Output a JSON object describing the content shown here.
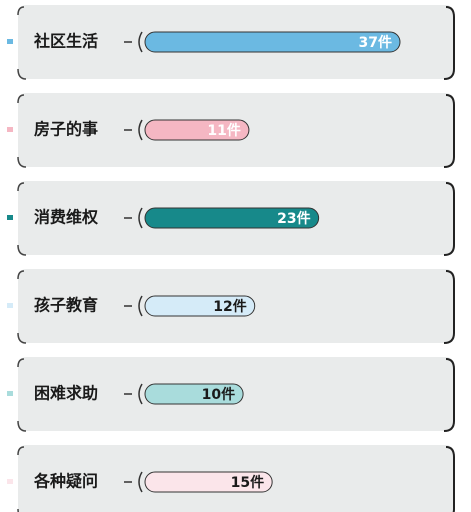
{
  "chart_data": {
    "type": "bar",
    "orientation": "horizontal",
    "categories": [
      "社区生活",
      "房子的事",
      "消费维权",
      "孩子教育",
      "困难求助",
      "各种疑问"
    ],
    "values": [
      37,
      11,
      23,
      12,
      10,
      15
    ],
    "value_labels": [
      "37件",
      "11件",
      "23件",
      "12件",
      "10件",
      "15件"
    ],
    "colors": [
      "#6bb9e2",
      "#f5b7c3",
      "#17898a",
      "#d5ebf8",
      "#a9dcdc",
      "#fbe5ea"
    ],
    "label_colors": [
      "#ffffff",
      "#ffffff",
      "#ffffff",
      "#1a1a1a",
      "#1a1a1a",
      "#1a1a1a"
    ]
  }
}
